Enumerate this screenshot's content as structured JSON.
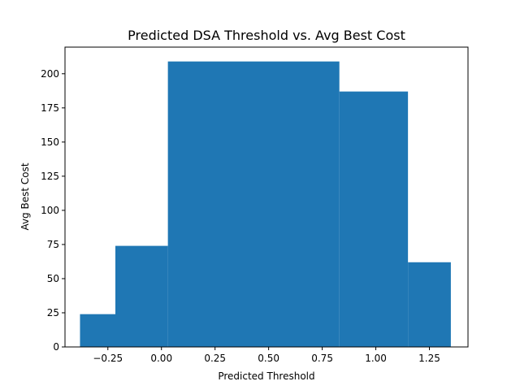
{
  "chart_data": {
    "type": "bar",
    "title": "Predicted DSA Threshold vs. Avg Best Cost",
    "xlabel": "Predicted Threshold",
    "ylabel": "Avg Best Cost",
    "xlim": [
      -0.45,
      1.43
    ],
    "ylim": [
      0,
      219.5
    ],
    "bar_color": "#1f77b4",
    "bins": [
      {
        "x0": -0.38,
        "x1": -0.215,
        "value": 24
      },
      {
        "x0": -0.215,
        "x1": 0.03,
        "value": 74
      },
      {
        "x0": 0.03,
        "x1": 0.83,
        "value": 209
      },
      {
        "x0": 0.83,
        "x1": 1.15,
        "value": 187
      },
      {
        "x0": 1.15,
        "x1": 1.35,
        "value": 62
      }
    ],
    "xticks": [
      -0.25,
      0.0,
      0.25,
      0.5,
      0.75,
      1.0,
      1.25
    ],
    "xtick_labels": [
      "−0.25",
      "0.00",
      "0.25",
      "0.50",
      "0.75",
      "1.00",
      "1.25"
    ],
    "yticks": [
      0,
      25,
      50,
      75,
      100,
      125,
      150,
      175,
      200
    ],
    "ytick_labels": [
      "0",
      "25",
      "50",
      "75",
      "100",
      "125",
      "150",
      "175",
      "200"
    ]
  }
}
